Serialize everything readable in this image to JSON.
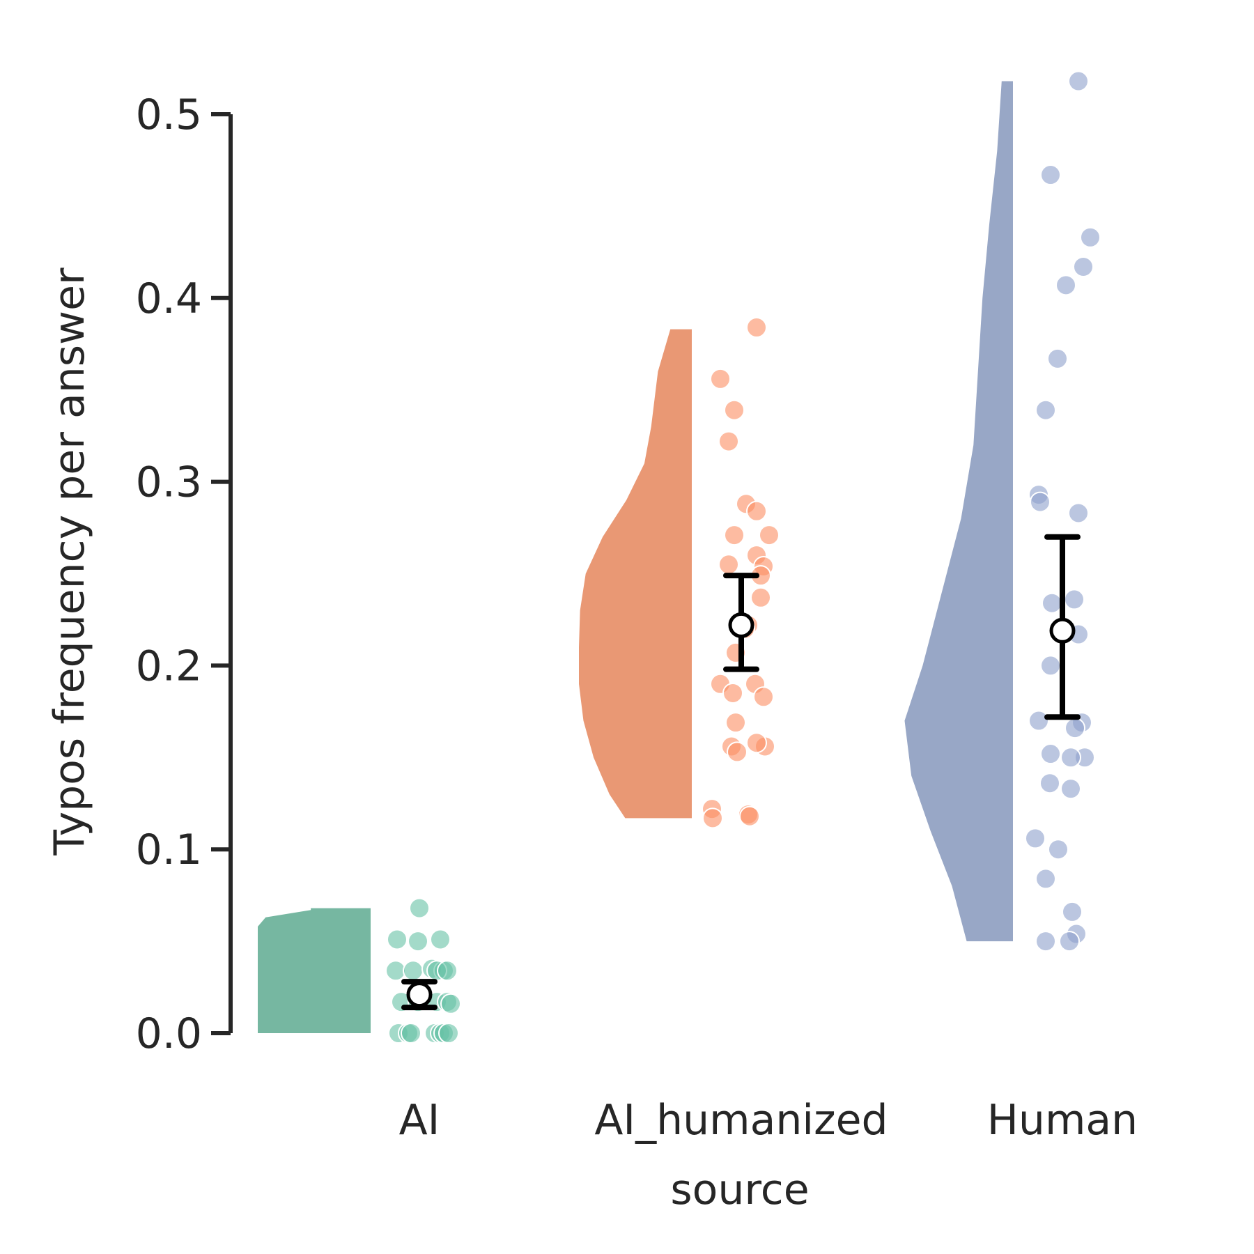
{
  "chart_data": {
    "type": "raincloud",
    "xlabel": "source",
    "ylabel": "Typos frequency per answer",
    "ylim": [
      0,
      0.5
    ],
    "yticks": [
      "0.0",
      "0.1",
      "0.2",
      "0.3",
      "0.4",
      "0.5"
    ],
    "grid": false,
    "categories": [
      "AI",
      "AI_humanized",
      "Human"
    ],
    "series": [
      {
        "name": "AI",
        "color": "#66c2a5",
        "violin_color": "#76b7a1",
        "mean": 0.021,
        "ci": [
          0.014,
          0.028
        ],
        "density": [
          [
            0.0,
            1.0
          ],
          [
            0.058,
            1.0
          ],
          [
            0.063,
            0.93
          ],
          [
            0.067,
            0.53
          ],
          [
            0.068,
            0.53
          ]
        ],
        "points": [
          0.068,
          0.051,
          0.05,
          0.051,
          0.034,
          0.034,
          0.035,
          0.034,
          0.034,
          0.034,
          0.017,
          0.017,
          0.017,
          0.017,
          0.016,
          0.0,
          0.0,
          0.0,
          0.0,
          0.0,
          0.0,
          0.0
        ]
      },
      {
        "name": "AI_humanized",
        "color": "#fc8d62",
        "violin_color": "#e99874",
        "mean": 0.222,
        "ci": [
          0.198,
          0.249
        ],
        "density": [
          [
            0.117,
            0.59
          ],
          [
            0.13,
            0.73
          ],
          [
            0.15,
            0.87
          ],
          [
            0.17,
            0.96
          ],
          [
            0.19,
            1.0
          ],
          [
            0.21,
            1.0
          ],
          [
            0.23,
            0.99
          ],
          [
            0.25,
            0.94
          ],
          [
            0.27,
            0.79
          ],
          [
            0.29,
            0.58
          ],
          [
            0.31,
            0.42
          ],
          [
            0.33,
            0.36
          ],
          [
            0.36,
            0.3
          ],
          [
            0.383,
            0.19
          ]
        ],
        "points": [
          0.384,
          0.356,
          0.339,
          0.322,
          0.288,
          0.284,
          0.271,
          0.271,
          0.26,
          0.255,
          0.254,
          0.249,
          0.237,
          0.222,
          0.22,
          0.207,
          0.19,
          0.19,
          0.185,
          0.183,
          0.169,
          0.156,
          0.156,
          0.153,
          0.158,
          0.122,
          0.119,
          0.118,
          0.117
        ]
      },
      {
        "name": "Human",
        "color": "#8da0cb",
        "violin_color": "#98a7c6",
        "mean": 0.219,
        "ci": [
          0.172,
          0.27
        ],
        "density": [
          [
            0.05,
            0.41
          ],
          [
            0.08,
            0.54
          ],
          [
            0.11,
            0.73
          ],
          [
            0.14,
            0.9
          ],
          [
            0.17,
            0.96
          ],
          [
            0.2,
            0.8
          ],
          [
            0.24,
            0.63
          ],
          [
            0.28,
            0.46
          ],
          [
            0.32,
            0.35
          ],
          [
            0.36,
            0.31
          ],
          [
            0.4,
            0.27
          ],
          [
            0.44,
            0.21
          ],
          [
            0.48,
            0.14
          ],
          [
            0.518,
            0.1
          ]
        ],
        "points": [
          0.518,
          0.467,
          0.433,
          0.417,
          0.407,
          0.367,
          0.339,
          0.293,
          0.289,
          0.283,
          0.236,
          0.234,
          0.217,
          0.2,
          0.17,
          0.169,
          0.166,
          0.152,
          0.15,
          0.15,
          0.136,
          0.133,
          0.106,
          0.1,
          0.084,
          0.066,
          0.054,
          0.05,
          0.05
        ]
      }
    ]
  }
}
